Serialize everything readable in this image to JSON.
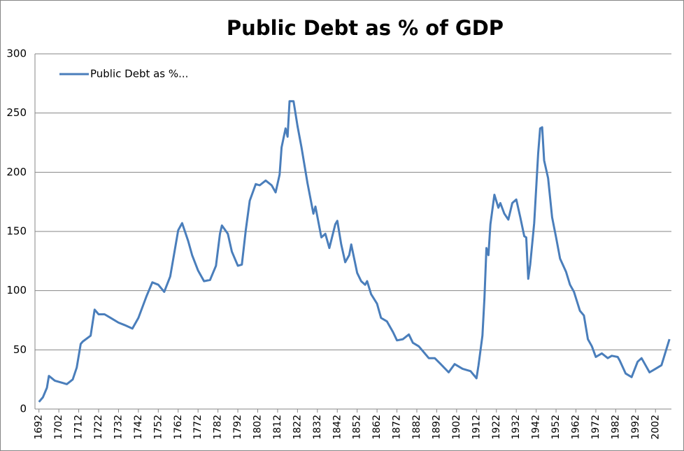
{
  "chart_data": {
    "type": "line",
    "title": "Public Debt as % of GDP",
    "x": [
      1692,
      1694,
      1696,
      1697,
      1700,
      1704,
      1706,
      1709,
      1711,
      1713,
      1714,
      1718,
      1720,
      1722,
      1725,
      1728,
      1732,
      1735,
      1739,
      1742,
      1746,
      1749,
      1752,
      1755,
      1758,
      1762,
      1764,
      1767,
      1769,
      1772,
      1775,
      1778,
      1781,
      1783,
      1784,
      1787,
      1789,
      1792,
      1794,
      1796,
      1798,
      1801,
      1803,
      1806,
      1809,
      1811,
      1813,
      1814,
      1816,
      1817,
      1818,
      1820,
      1822,
      1824,
      1827,
      1830,
      1831,
      1834,
      1836,
      1838,
      1841,
      1842,
      1844,
      1846,
      1848,
      1849,
      1852,
      1854,
      1856,
      1857,
      1859,
      1862,
      1864,
      1867,
      1870,
      1872,
      1875,
      1878,
      1880,
      1883,
      1885,
      1888,
      1891,
      1894,
      1898,
      1901,
      1905,
      1909,
      1912,
      1913,
      1915,
      1916,
      1917,
      1918,
      1919,
      1921,
      1923,
      1924,
      1926,
      1928,
      1930,
      1932,
      1934,
      1936,
      1937,
      1938,
      1939,
      1941,
      1943,
      1944,
      1945,
      1946,
      1948,
      1950,
      1952,
      1954,
      1957,
      1959,
      1961,
      1964,
      1966,
      1968,
      1970,
      1972,
      1975,
      1978,
      1980,
      1983,
      1984,
      1987,
      1990,
      1993,
      1995,
      1997,
      1999,
      2002,
      2005,
      2009
    ],
    "series": [
      {
        "name": "Public Debt as %...",
        "color": "#4a7ebb",
        "values": [
          6,
          10,
          18,
          28,
          24,
          22,
          21,
          25,
          35,
          55,
          57,
          62,
          84,
          80,
          80,
          77,
          73,
          71,
          68,
          77,
          95,
          107,
          105,
          99,
          112,
          151,
          157,
          142,
          130,
          117,
          108,
          109,
          121,
          148,
          155,
          148,
          133,
          121,
          122,
          151,
          176,
          190,
          189,
          193,
          189,
          183,
          198,
          221,
          237,
          230,
          260,
          260,
          239,
          221,
          191,
          165,
          171,
          145,
          148,
          136,
          156,
          159,
          139,
          124,
          130,
          139,
          115,
          108,
          105,
          108,
          97,
          89,
          77,
          74,
          65,
          58,
          59,
          63,
          56,
          53,
          49,
          43,
          43,
          38,
          31,
          38,
          34,
          32,
          26,
          37,
          62,
          94,
          136,
          130,
          156,
          181,
          170,
          174,
          165,
          160,
          174,
          177,
          162,
          146,
          145,
          110,
          122,
          157,
          216,
          237,
          238,
          210,
          195,
          162,
          145,
          127,
          116,
          105,
          99,
          83,
          79,
          59,
          53,
          44,
          47,
          43,
          45,
          44,
          41,
          30,
          27,
          40,
          43,
          37,
          31,
          34,
          37,
          59
        ]
      }
    ],
    "xlim": [
      1690,
      2010
    ],
    "xticks": [
      1692,
      1702,
      1712,
      1722,
      1732,
      1742,
      1752,
      1762,
      1772,
      1782,
      1792,
      1802,
      1812,
      1822,
      1832,
      1842,
      1852,
      1862,
      1872,
      1882,
      1892,
      1902,
      1912,
      1922,
      1932,
      1942,
      1952,
      1962,
      1972,
      1982,
      1992,
      2002
    ],
    "ylim": [
      0,
      300
    ],
    "yticks": [
      0,
      50,
      100,
      150,
      200,
      250,
      300
    ],
    "grid": true,
    "legend": "top-left"
  }
}
